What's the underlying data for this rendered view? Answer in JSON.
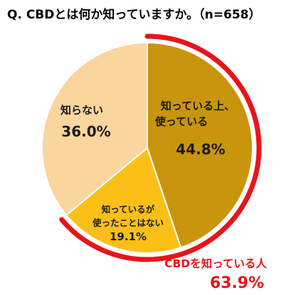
{
  "chart_data": {
    "type": "pie",
    "title": "Q. CBDとは何か知っていますか。（n=658）",
    "slices": [
      {
        "label_lines": [
          "知っている上、",
          "使っている"
        ],
        "value": 44.8,
        "pct_label": "44.8%",
        "color": "#C9950C"
      },
      {
        "label_lines": [
          "知っているが",
          "使ったことはない"
        ],
        "value": 19.1,
        "pct_label": "19.1%",
        "color": "#FBBF18"
      },
      {
        "label_lines": [
          "知らない"
        ],
        "value": 36.0,
        "pct_label": "36.0%",
        "color": "#FAD59E"
      }
    ],
    "highlight": {
      "label": "CBDを知っている人",
      "value": 63.9,
      "pct_label": "63.9%",
      "color": "#E8141B"
    }
  }
}
